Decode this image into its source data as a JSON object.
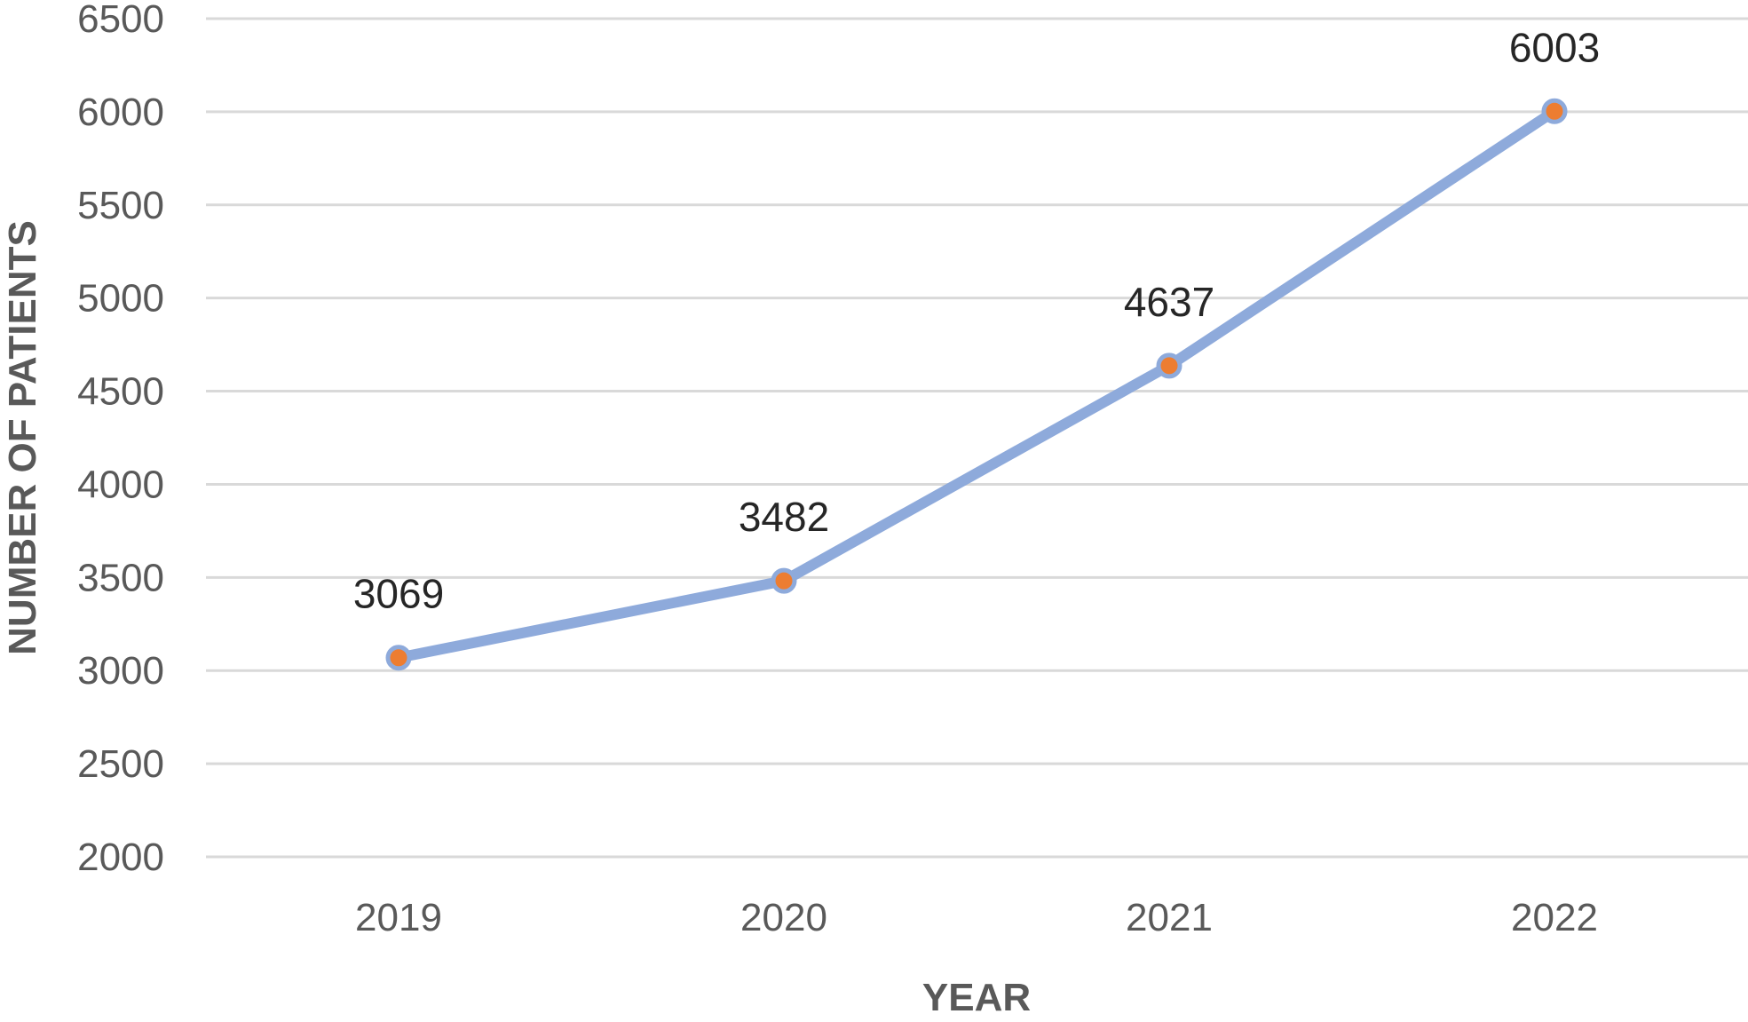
{
  "chart_data": {
    "type": "line",
    "title": "",
    "xlabel": "YEAR",
    "ylabel": "NUMBER OF PATIENTS",
    "categories": [
      "2019",
      "2020",
      "2021",
      "2022"
    ],
    "series": [
      {
        "values": [
          3069,
          3482,
          4637,
          6003
        ]
      }
    ],
    "data_labels": [
      "3069",
      "3482",
      "4637",
      "6003"
    ],
    "ylim": [
      2000,
      6500
    ],
    "yticks": [
      2000,
      2500,
      3000,
      3500,
      4000,
      4500,
      5000,
      5500,
      6000,
      6500
    ],
    "grid": true,
    "legend": "none",
    "colors": {
      "line": "#8eaadb",
      "marker": "#ed7d31",
      "grid": "#d9d9d9",
      "tick_text": "#595959",
      "label_text": "#262626"
    }
  }
}
